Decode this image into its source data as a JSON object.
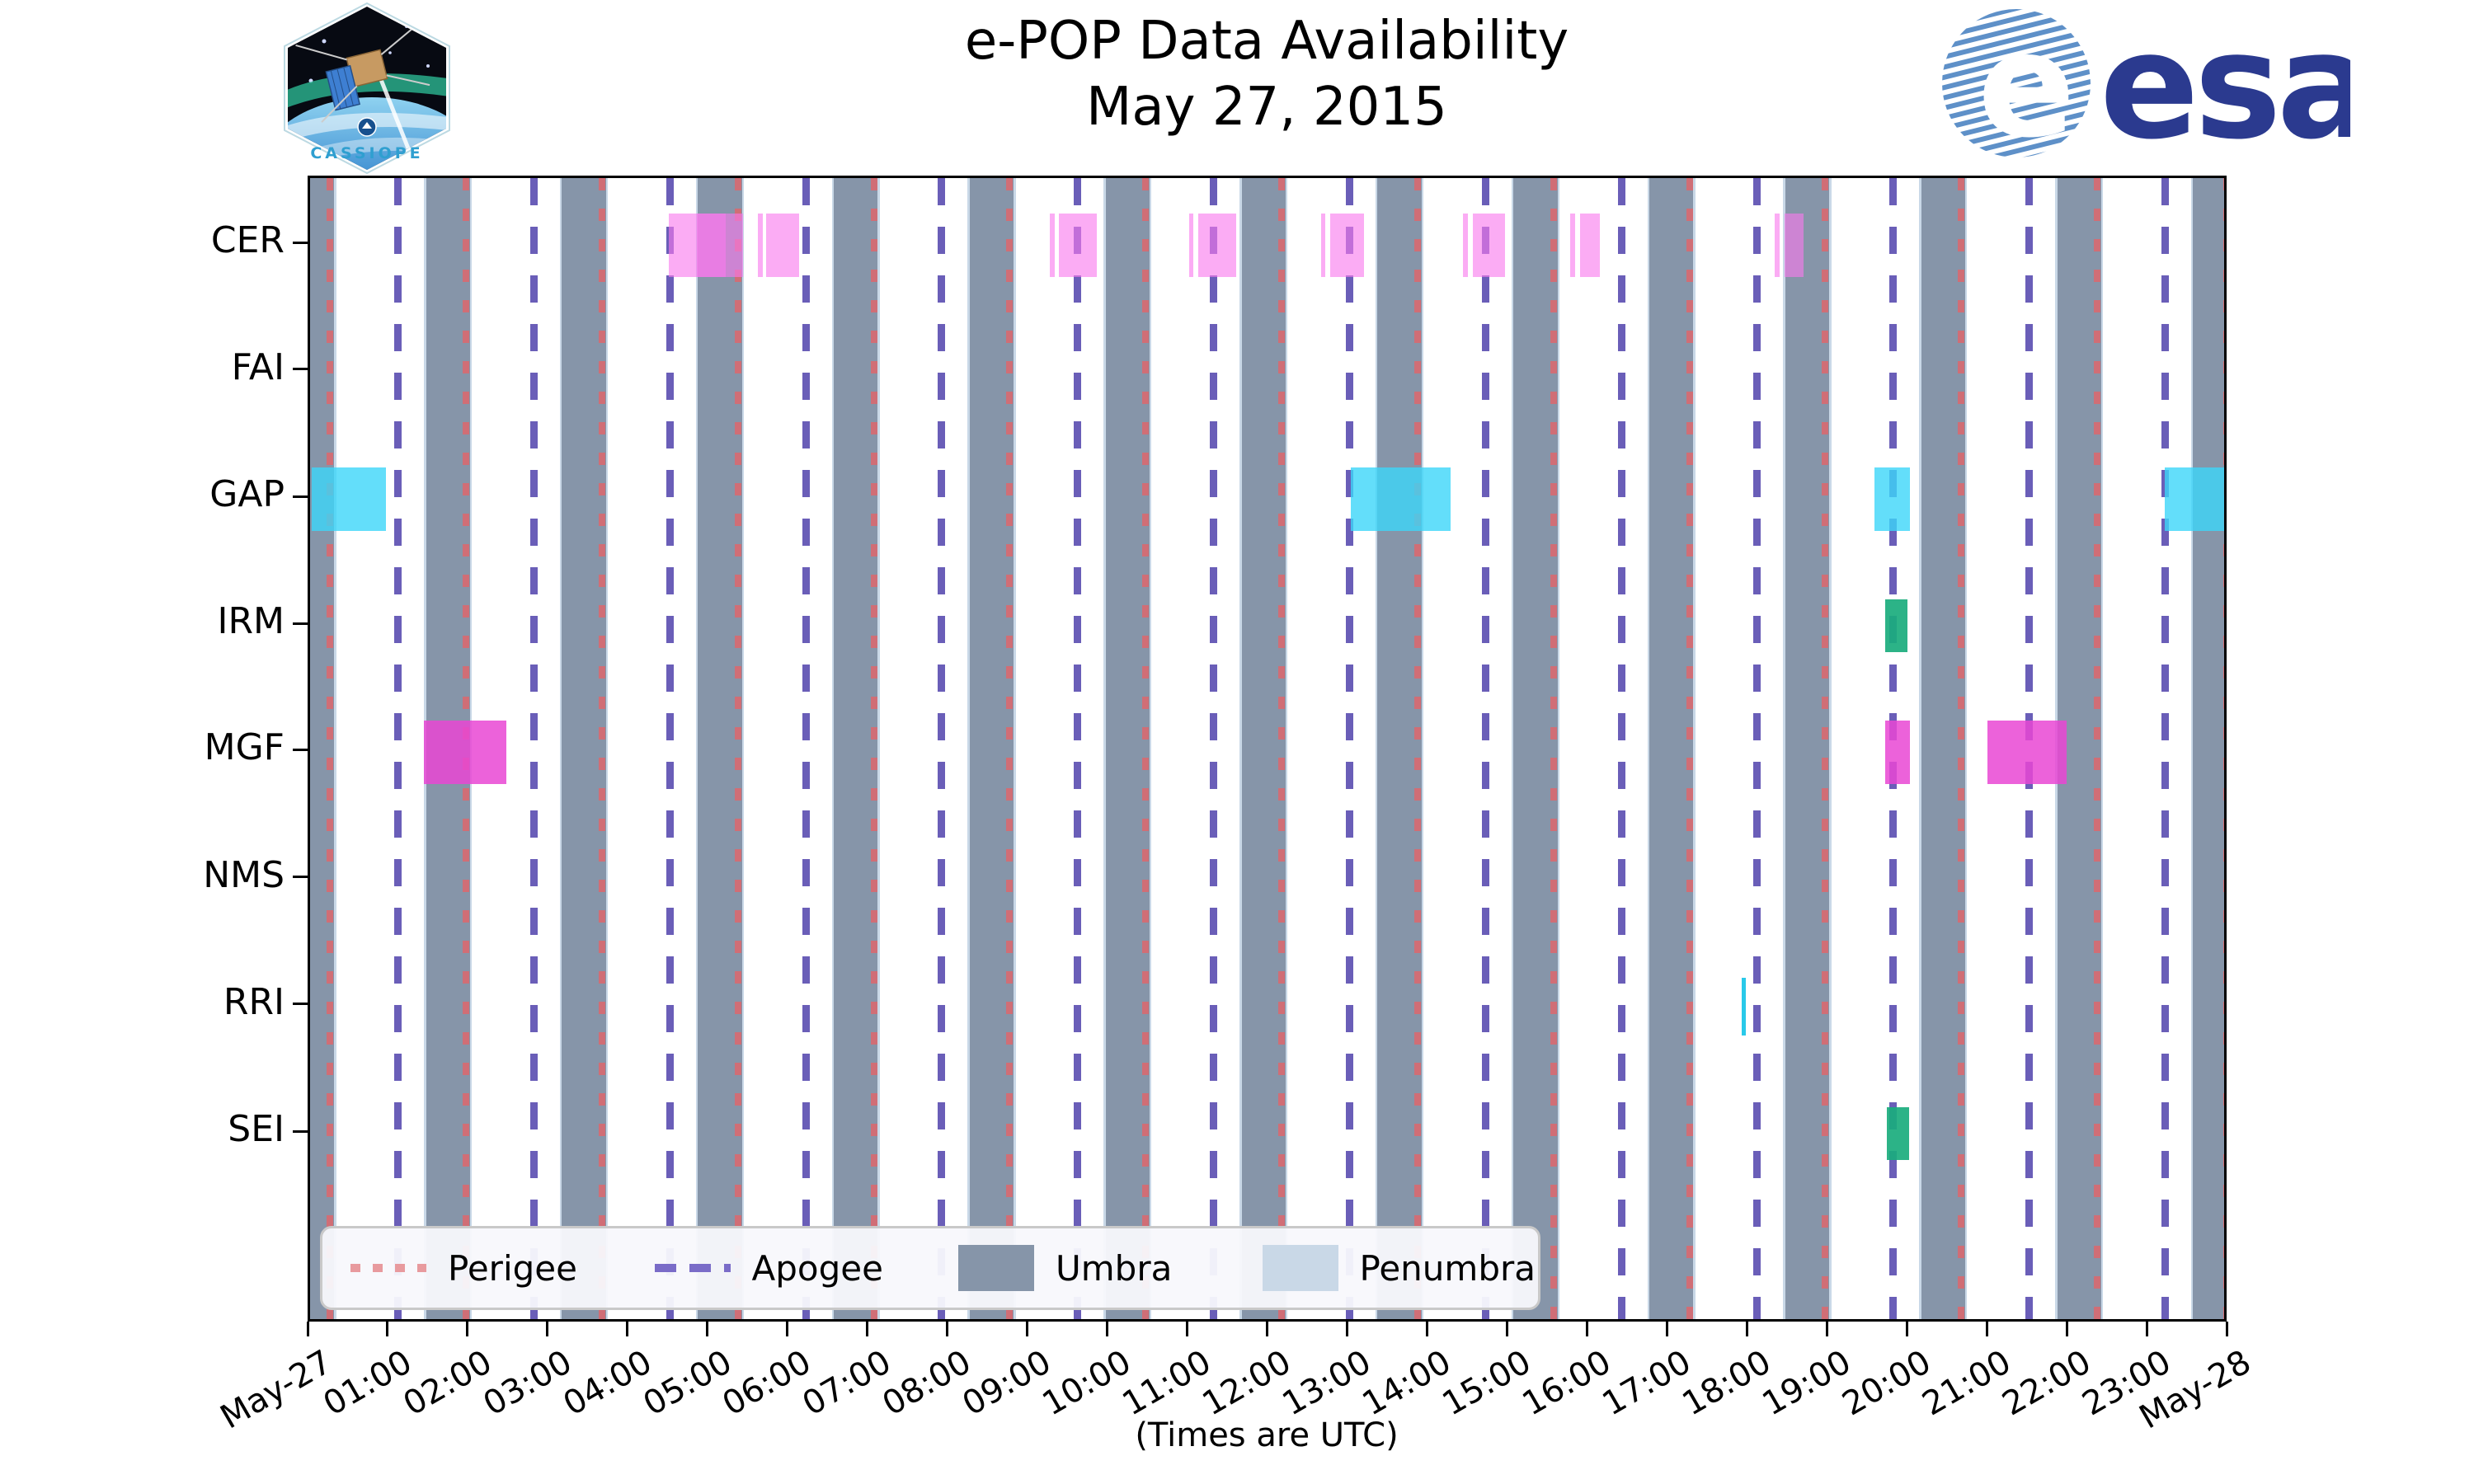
{
  "header": {
    "cassiope_patch_label": "CASSIOPE",
    "esa_emblem_letter": "e",
    "esa_wordmark": "esa"
  },
  "chart_data": {
    "type": "bar",
    "subtype": "horizontal-interval-timeline",
    "title": "e-POP Data Availability",
    "subtitle": "May 27, 2015",
    "xlabel": "(Times are UTC)",
    "x_axis": {
      "unit": "hours UTC",
      "range_hours": [
        0,
        24
      ],
      "tick_labels": [
        "May-27",
        "01:00",
        "02:00",
        "03:00",
        "04:00",
        "05:00",
        "06:00",
        "07:00",
        "08:00",
        "09:00",
        "10:00",
        "11:00",
        "12:00",
        "13:00",
        "14:00",
        "15:00",
        "16:00",
        "17:00",
        "18:00",
        "19:00",
        "20:00",
        "21:00",
        "22:00",
        "23:00",
        "May-28"
      ]
    },
    "y_axis": {
      "instruments": [
        "CER",
        "FAI",
        "GAP",
        "IRM",
        "MGF",
        "NMS",
        "RRI",
        "SEI"
      ]
    },
    "colors": {
      "cer_bar": "#F879EE",
      "gap_bar": "#3CD6F9",
      "irm_bar": "#1AAC7D",
      "mgf_bar": "#E946D3",
      "rri_bar": "#29C9E9",
      "sei_bar": "#1AAC7D",
      "umbra": "#8695A9",
      "penumbra": "#C9D8E7",
      "perigee": "#D06E76",
      "apogee": "#6A5EB8",
      "legend_background": "#F8F8FC"
    },
    "series": [
      {
        "instrument": "CER",
        "color": "#F879EE",
        "opacity": 0.62,
        "segments": [
          {
            "start": 4.49,
            "end": 5.41
          },
          {
            "start": 4.84,
            "end": 5.2,
            "overlay": true
          },
          {
            "start": 5.6,
            "end": 5.66
          },
          {
            "start": 5.7,
            "end": 6.12
          },
          {
            "start": 9.25,
            "end": 9.31
          },
          {
            "start": 9.37,
            "end": 9.84
          },
          {
            "start": 10.99,
            "end": 11.05
          },
          {
            "start": 11.11,
            "end": 11.58
          },
          {
            "start": 12.64,
            "end": 12.7
          },
          {
            "start": 12.76,
            "end": 13.18
          },
          {
            "start": 14.42,
            "end": 14.48
          },
          {
            "start": 14.54,
            "end": 14.94
          },
          {
            "start": 15.76,
            "end": 15.82
          },
          {
            "start": 15.88,
            "end": 16.13
          },
          {
            "start": 18.32,
            "end": 18.38
          },
          {
            "start": 18.44,
            "end": 18.68
          }
        ]
      },
      {
        "instrument": "FAI",
        "color": "#F879EE",
        "opacity": 0.62,
        "segments": []
      },
      {
        "instrument": "GAP",
        "color": "#3CD6F9",
        "opacity": 0.8,
        "segments": [
          {
            "start": 0.02,
            "end": 0.95
          },
          {
            "start": 13.02,
            "end": 14.26
          },
          {
            "start": 19.56,
            "end": 20.01
          },
          {
            "start": 23.2,
            "end": 23.97
          }
        ]
      },
      {
        "instrument": "IRM",
        "color": "#1AAC7D",
        "opacity": 0.92,
        "segments": [
          {
            "start": 19.7,
            "end": 19.98
          }
        ]
      },
      {
        "instrument": "MGF",
        "color": "#E946D3",
        "opacity": 0.85,
        "segments": [
          {
            "start": 1.42,
            "end": 2.45
          },
          {
            "start": 19.7,
            "end": 20.01
          },
          {
            "start": 20.98,
            "end": 21.97
          }
        ]
      },
      {
        "instrument": "NMS",
        "color": "#E946D3",
        "opacity": 0.85,
        "segments": []
      },
      {
        "instrument": "RRI",
        "color": "#29C9E9",
        "opacity": 1.0,
        "segments": [
          {
            "start": 17.9,
            "end": 17.96
          }
        ]
      },
      {
        "instrument": "SEI",
        "color": "#1AAC7D",
        "opacity": 0.92,
        "segments": [
          {
            "start": 19.72,
            "end": 20.0
          }
        ]
      }
    ],
    "orbit": {
      "perigee_hours": [
        0.25,
        1.95,
        3.65,
        5.35,
        7.05,
        8.75,
        10.45,
        12.15,
        13.85,
        15.55,
        17.25,
        18.95,
        20.65,
        22.35,
        23.97
      ],
      "apogee_hours": [
        1.1,
        2.8,
        4.5,
        6.2,
        7.9,
        9.6,
        11.3,
        13.0,
        14.7,
        16.4,
        18.1,
        19.8,
        21.5,
        23.2
      ],
      "umbra_intervals": [
        [
          0.0,
          0.3
        ],
        [
          1.45,
          2.0
        ],
        [
          3.15,
          3.7
        ],
        [
          4.85,
          5.4
        ],
        [
          6.55,
          7.1
        ],
        [
          8.25,
          8.8
        ],
        [
          9.95,
          10.5
        ],
        [
          11.65,
          12.2
        ],
        [
          13.35,
          13.9
        ],
        [
          15.05,
          15.6
        ],
        [
          16.75,
          17.3
        ],
        [
          18.45,
          19.0
        ],
        [
          20.15,
          20.7
        ],
        [
          21.85,
          22.4
        ],
        [
          23.55,
          24.0
        ]
      ],
      "penumbra_edge_width_hours": 0.025
    },
    "legend": {
      "items": [
        {
          "label": "Perigee",
          "style": "dotted-line",
          "color": "#E89A9E"
        },
        {
          "label": "Apogee",
          "style": "dashed-line",
          "color": "#7A6CC8"
        },
        {
          "label": "Umbra",
          "style": "filled-rect",
          "color": "#8695A9"
        },
        {
          "label": "Penumbra",
          "style": "filled-rect",
          "color": "#C9D8E7"
        }
      ],
      "position": "lower-left-inside"
    },
    "grid": false
  }
}
